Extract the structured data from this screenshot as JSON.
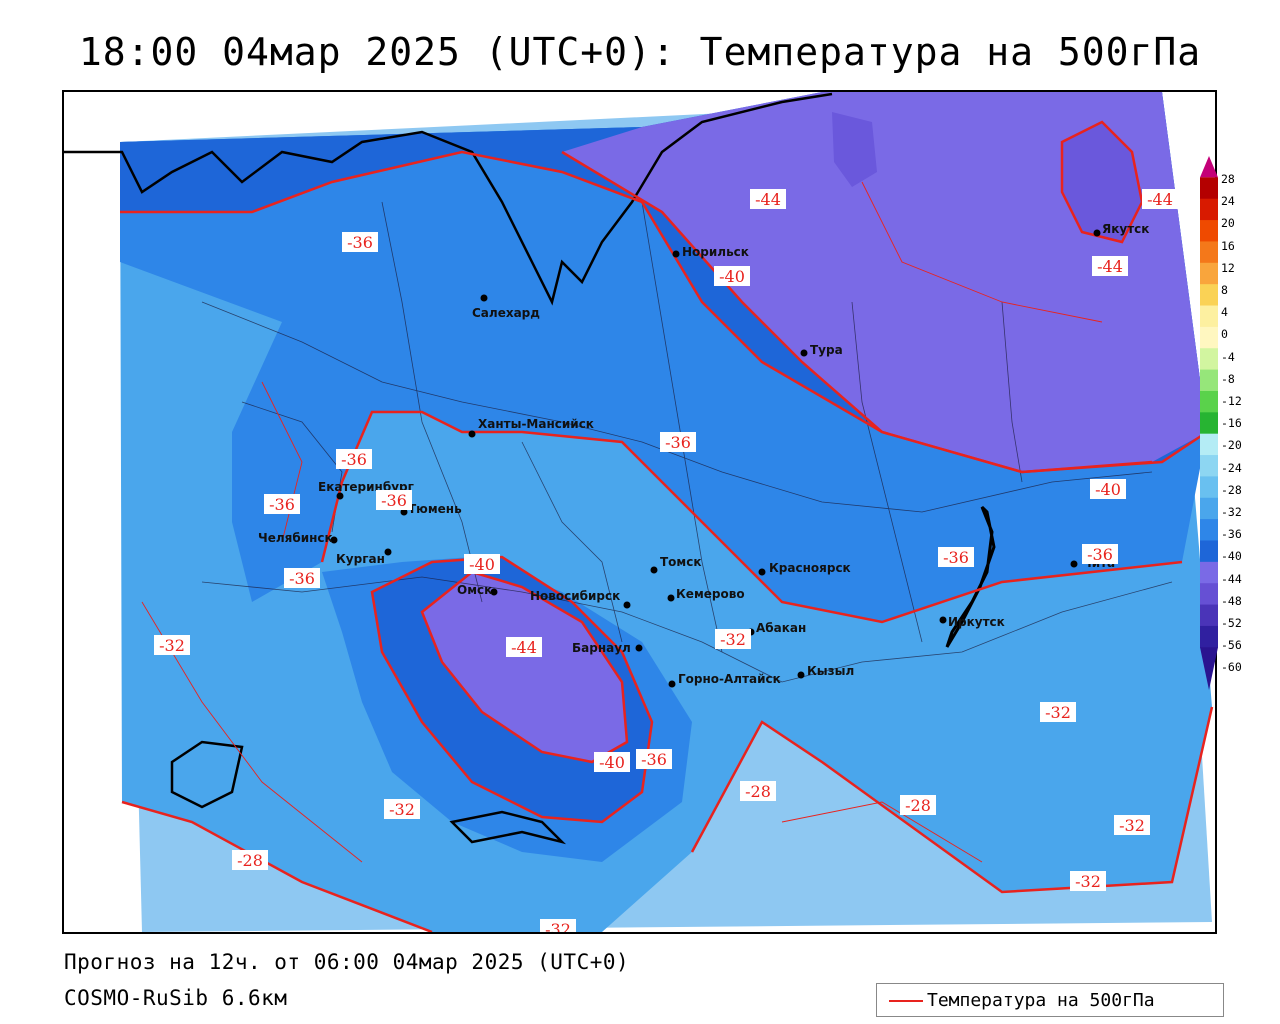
{
  "title": "18:00 04мар 2025 (UTC+0): Температура на 500гПа",
  "footer": {
    "forecast": "Прогноз на 12ч. от 06:00 04мар 2025 (UTC+0)",
    "model": "COSMO-RuSib 6.6км"
  },
  "legend": {
    "label": "Температура на 500гПа",
    "line_color": "#e8231e"
  },
  "colorbar": {
    "ticks": [
      "28",
      "24",
      "20",
      "16",
      "12",
      "8",
      "4",
      "0",
      "-4",
      "-8",
      "-12",
      "-16",
      "-20",
      "-24",
      "-28",
      "-32",
      "-36",
      "-40",
      "-44",
      "-48",
      "-52",
      "-56",
      "-60"
    ],
    "colors": [
      "#c40078",
      "#b40000",
      "#d81a00",
      "#ef4a00",
      "#f4781a",
      "#f9a53c",
      "#fad255",
      "#fdf0a0",
      "#fff7c0",
      "#d2f5a0",
      "#96e67a",
      "#5ad24b",
      "#27b432",
      "#b4ecf5",
      "#8dd6f2",
      "#69c0f0",
      "#4aa6ec",
      "#2e86e8",
      "#1e66d8",
      "#7a6ae6",
      "#6650d4",
      "#4a34b8",
      "#3020a0",
      "#2a1490"
    ]
  },
  "cities": [
    {
      "name": "Норильск"
    },
    {
      "name": "Салехард"
    },
    {
      "name": "Тура"
    },
    {
      "name": "Якутск"
    },
    {
      "name": "Ханты-Мансийск"
    },
    {
      "name": "Екатеринбург"
    },
    {
      "name": "Тюмень"
    },
    {
      "name": "Челябинск"
    },
    {
      "name": "Курган"
    },
    {
      "name": "Омск"
    },
    {
      "name": "Новосибирск"
    },
    {
      "name": "Томск"
    },
    {
      "name": "Кемерово"
    },
    {
      "name": "Красноярск"
    },
    {
      "name": "Абакан"
    },
    {
      "name": "Барнаул"
    },
    {
      "name": "Горно-Алтайск"
    },
    {
      "name": "Кызыл"
    },
    {
      "name": "Иркутск"
    },
    {
      "name": "Чита"
    }
  ],
  "isotherm_labels": [
    "-44",
    "-44",
    "-44",
    "-36",
    "-40",
    "-36",
    "-36",
    "-36",
    "-36",
    "-40",
    "-36",
    "-40",
    "-36",
    "-36",
    "-32",
    "-32",
    "-44",
    "-32",
    "-40",
    "-36",
    "-32",
    "-28",
    "-28",
    "-32",
    "-28",
    "-32",
    "-32"
  ]
}
